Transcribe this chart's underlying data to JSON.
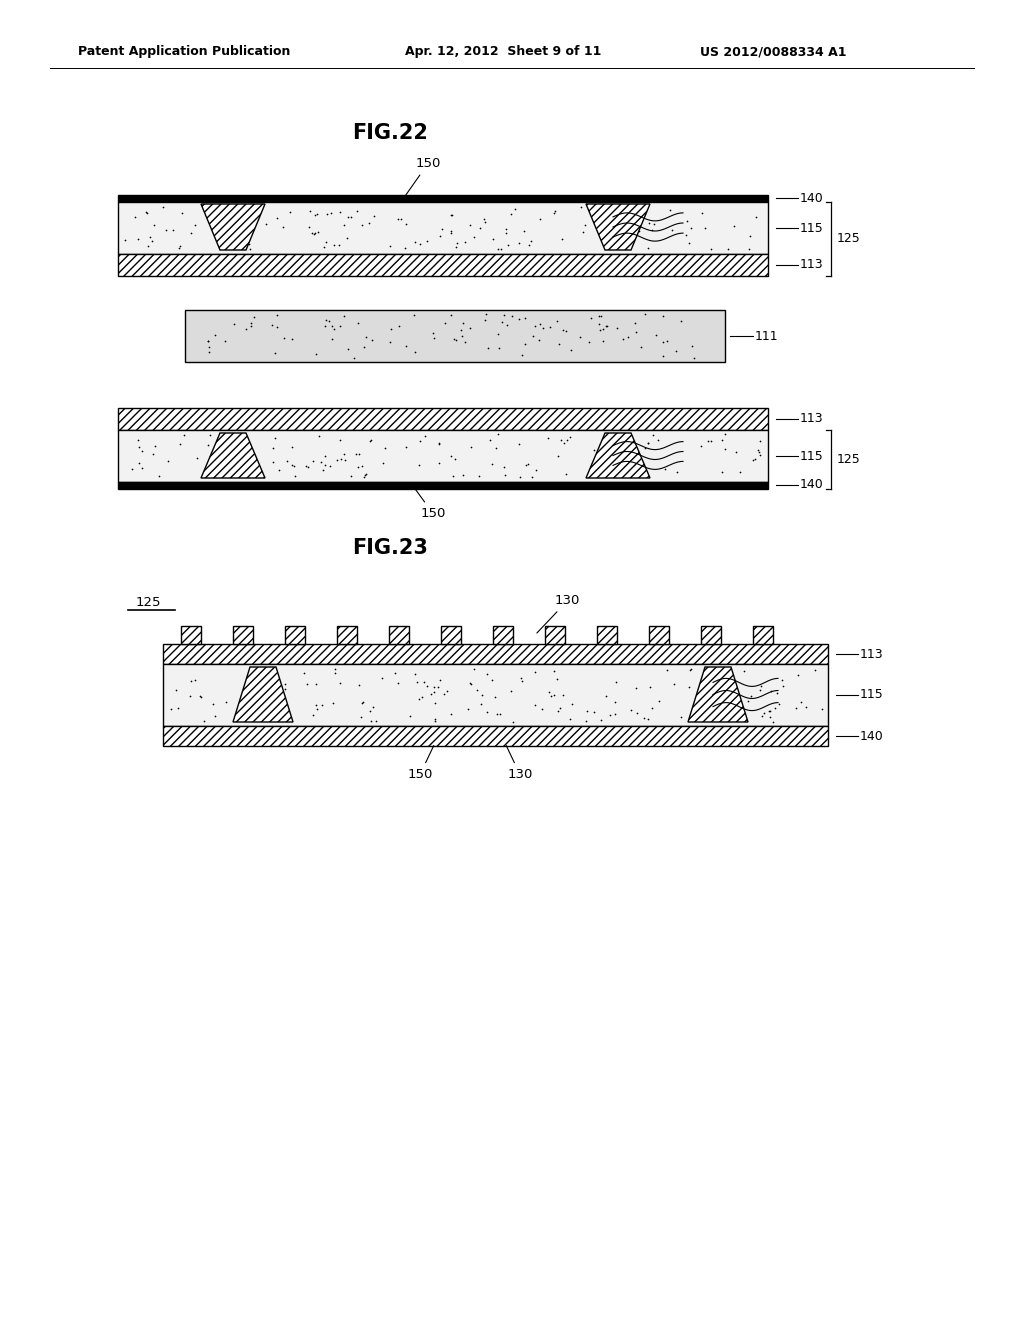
{
  "bg_color": "#ffffff",
  "header_text": "Patent Application Publication",
  "header_date": "Apr. 12, 2012  Sheet 9 of 11",
  "header_patent": "US 2012/0088334 A1",
  "fig22_title": "FIG.22",
  "fig23_title": "FIG.23",
  "label_125": "125",
  "label_111": "111",
  "label_113": "113",
  "label_115": "115",
  "label_140": "140",
  "label_150": "150",
  "label_130": "130"
}
